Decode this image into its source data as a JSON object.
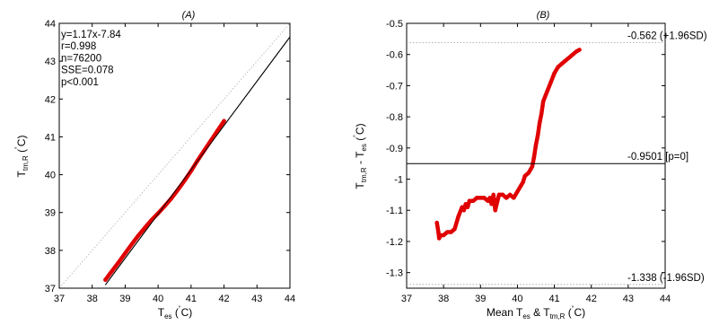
{
  "chart_data": [
    {
      "type": "scatter",
      "title": "(A)",
      "xlabel": {
        "main": "T",
        "sub": "es",
        "unit": "(°C)",
        "deg": "˚",
        "unit_open": "(",
        "unit_close": "C)"
      },
      "ylabel": {
        "main": "T",
        "sub": "tm,R",
        "deg": "˚",
        "unit_open": "(",
        "unit_close": "C)"
      },
      "xlim": [
        37,
        44
      ],
      "ylim": [
        37,
        44
      ],
      "xticks": [
        37,
        38,
        39,
        40,
        41,
        42,
        43,
        44
      ],
      "yticks": [
        37,
        38,
        39,
        40,
        41,
        42,
        43,
        44
      ],
      "grid": false,
      "stats": [
        "y=1.17x-7.84",
        "r=0.998",
        "n=76200",
        "SSE=0.078",
        "p<0.001"
      ],
      "identity_line": {
        "x": [
          37,
          44
        ],
        "y": [
          37,
          44
        ],
        "style": "dotted",
        "color": "#b0b0b0"
      },
      "fit_line": {
        "slope": 1.17,
        "intercept": -7.84,
        "x": [
          38.4,
          44
        ],
        "color": "#000000"
      },
      "series": [
        {
          "color": "#e00000",
          "x": [
            38.4,
            38.6,
            38.8,
            39.0,
            39.2,
            39.4,
            39.6,
            39.8,
            40.0,
            40.2,
            40.4,
            40.6,
            40.8,
            41.0,
            41.2,
            41.4,
            41.6,
            41.8,
            42.0
          ],
          "y": [
            37.22,
            37.45,
            37.68,
            37.92,
            38.16,
            38.39,
            38.6,
            38.8,
            38.98,
            39.17,
            39.37,
            39.6,
            39.84,
            40.1,
            40.38,
            40.64,
            40.9,
            41.16,
            41.42
          ]
        }
      ]
    },
    {
      "type": "scatter",
      "title": "(B)",
      "xlabel": {
        "prefix": "Mean T",
        "sub1": "es",
        "mid": " & T",
        "sub2": "tm,R",
        "deg": "˚",
        "unit_open": "(",
        "unit_close": "C)"
      },
      "ylabel": {
        "main": "T",
        "sub1": "tm,R",
        "mid": " - T",
        "sub2": "es",
        "deg": "˚",
        "unit_open": "(",
        "unit_close": "C)"
      },
      "xlim": [
        37,
        44
      ],
      "ylim": [
        -1.35,
        -0.5
      ],
      "xticks": [
        37,
        38,
        39,
        40,
        41,
        42,
        43,
        44
      ],
      "yticks": [
        -0.5,
        -0.6,
        -0.7,
        -0.8,
        -0.9,
        -1,
        -1.1,
        -1.2,
        -1.3
      ],
      "ytick_labels": [
        "-0.5",
        "-0.6",
        "-0.7",
        "-0.8",
        "-0.9",
        "-1",
        "-1.1",
        "-1.2",
        "-1.3"
      ],
      "grid": false,
      "reference_lines": [
        {
          "y": -0.562,
          "label": "-0.562 (+1.96SD)",
          "style": "dotted",
          "color": "#a0a0a0"
        },
        {
          "y": -0.9501,
          "label": "-0.9501 [p=0]",
          "style": "solid",
          "color": "#000000"
        },
        {
          "y": -1.338,
          "label": "-1.338 (-1.96SD)",
          "style": "dotted",
          "color": "#a0a0a0"
        }
      ],
      "series": [
        {
          "color": "#e00000",
          "x": [
            37.82,
            37.86,
            37.88,
            37.92,
            38.0,
            38.1,
            38.2,
            38.3,
            38.4,
            38.5,
            38.55,
            38.6,
            38.65,
            38.7,
            38.8,
            38.9,
            39.0,
            39.1,
            39.2,
            39.25,
            39.3,
            39.35,
            39.4,
            39.5,
            39.6,
            39.7,
            39.8,
            39.9,
            40.0,
            40.1,
            40.15,
            40.2,
            40.3,
            40.4,
            40.45,
            40.5,
            40.55,
            40.6,
            40.65,
            40.7,
            40.8,
            40.9,
            41.0,
            41.1,
            41.2,
            41.3,
            41.4,
            41.5,
            41.6,
            41.68
          ],
          "y": [
            -1.14,
            -1.17,
            -1.19,
            -1.18,
            -1.18,
            -1.17,
            -1.17,
            -1.16,
            -1.12,
            -1.09,
            -1.1,
            -1.08,
            -1.09,
            -1.07,
            -1.07,
            -1.06,
            -1.06,
            -1.06,
            -1.07,
            -1.06,
            -1.08,
            -1.05,
            -1.1,
            -1.05,
            -1.05,
            -1.06,
            -1.05,
            -1.06,
            -1.04,
            -1.02,
            -1.01,
            -0.99,
            -0.98,
            -0.96,
            -0.93,
            -0.89,
            -0.86,
            -0.82,
            -0.79,
            -0.75,
            -0.72,
            -0.69,
            -0.66,
            -0.64,
            -0.63,
            -0.62,
            -0.61,
            -0.6,
            -0.59,
            -0.585
          ]
        }
      ]
    }
  ]
}
